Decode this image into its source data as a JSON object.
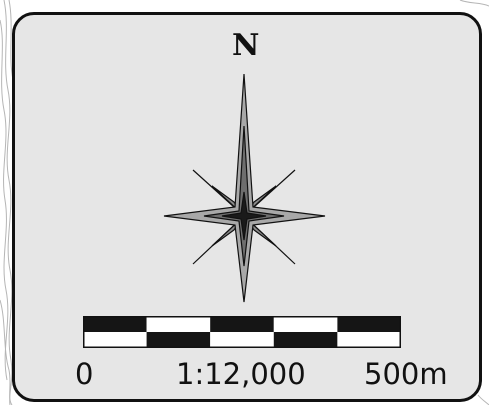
{
  "compass": {
    "north_label": "N",
    "icon": "compass-rose-icon",
    "colors": {
      "outer_star": "#a8a8a8",
      "inner_star": "#6e6e6e",
      "center": "#1a1a1a",
      "outline": "#111111"
    }
  },
  "scale_bar": {
    "start_label": "0",
    "ratio_label": "1:12,000",
    "end_label": "500m",
    "segments": 10,
    "colors": {
      "dark": "#151515",
      "light": "#ffffff"
    }
  },
  "panel": {
    "background": "#e6e6e6",
    "border": "#111111"
  }
}
